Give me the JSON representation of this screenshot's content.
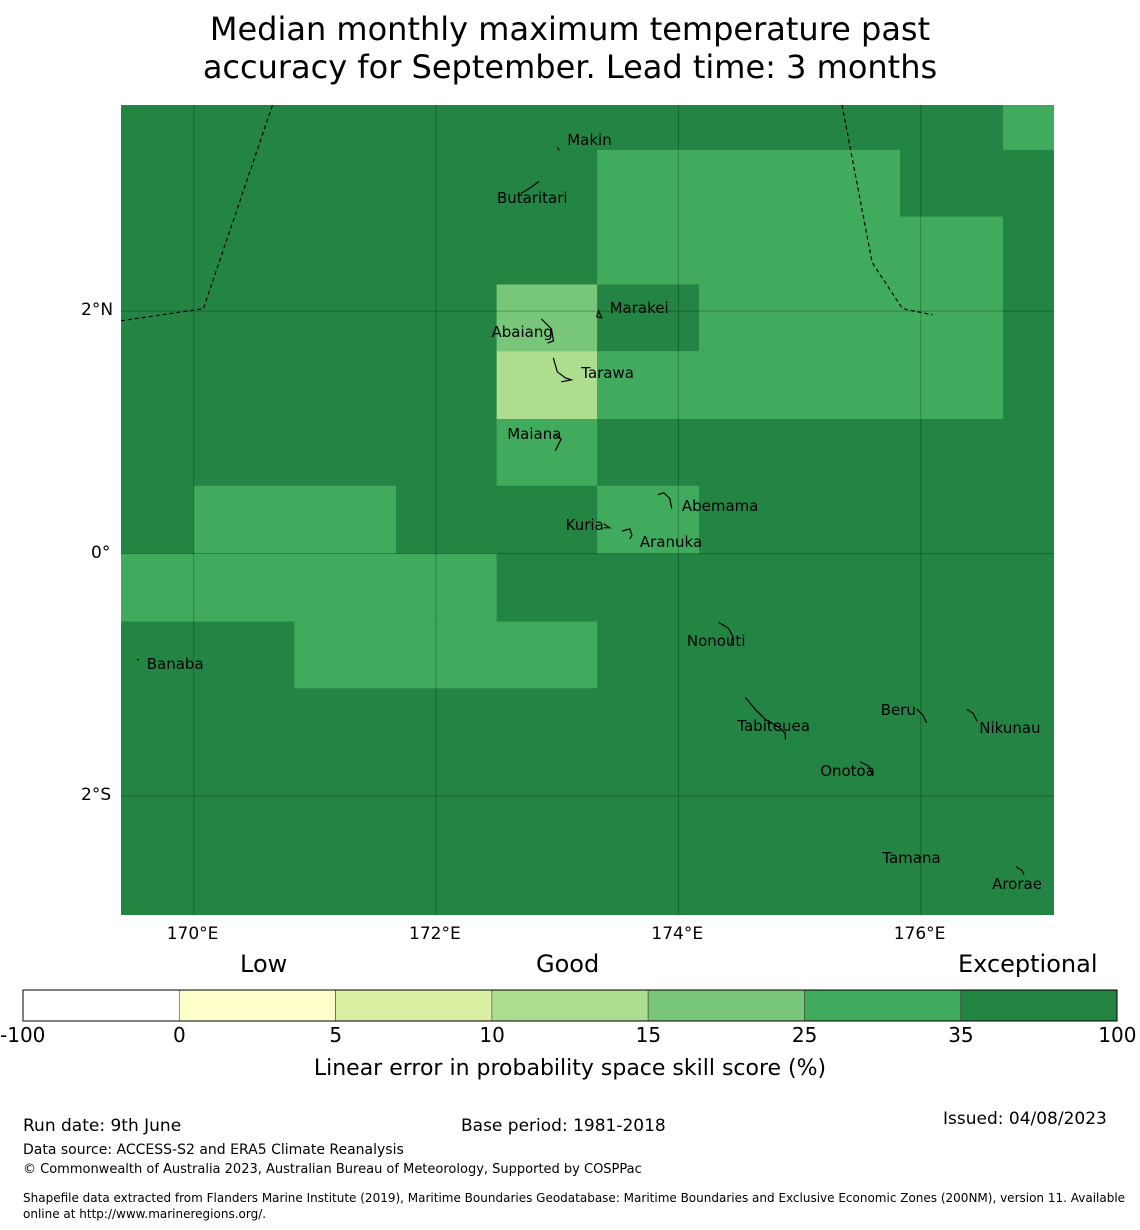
{
  "title_line1": "Median monthly maximum temperature past",
  "title_line2": "accuracy for September. Lead time: 3 months",
  "map": {
    "lon_range": [
      169.4,
      177.1
    ],
    "lat_range": [
      -2.98,
      3.7
    ],
    "lon_ticks": [
      {
        "value": 170,
        "label": "170°E"
      },
      {
        "value": 172,
        "label": "172°E"
      },
      {
        "value": 174,
        "label": "174°E"
      },
      {
        "value": 176,
        "label": "176°E"
      }
    ],
    "lat_ticks": [
      {
        "value": 2,
        "label": "2°N"
      },
      {
        "value": 0,
        "label": "0°"
      },
      {
        "value": -2,
        "label": "2°S"
      }
    ],
    "places": [
      {
        "name": "Makin",
        "lon": 173.0,
        "lat": 3.35
      },
      {
        "name": "Butaritari",
        "lon": 172.8,
        "lat": 3.07
      },
      {
        "name": "Marakei",
        "lon": 173.35,
        "lat": 1.97
      },
      {
        "name": "Abaiang",
        "lon": 172.92,
        "lat": 1.82
      },
      {
        "name": "Tarawa",
        "lon": 173.05,
        "lat": 1.45
      },
      {
        "name": "Maiana",
        "lon": 173.0,
        "lat": 0.93
      },
      {
        "name": "Abemama",
        "lon": 173.88,
        "lat": 0.42
      },
      {
        "name": "Kuria",
        "lon": 173.4,
        "lat": 0.23
      },
      {
        "name": "Aranuka",
        "lon": 173.6,
        "lat": 0.17
      },
      {
        "name": "Nonouti",
        "lon": 174.4,
        "lat": -0.65
      },
      {
        "name": "Banaba",
        "lon": 169.53,
        "lat": -0.87
      },
      {
        "name": "Beru",
        "lon": 176.0,
        "lat": -1.33
      },
      {
        "name": "Nikunau",
        "lon": 176.45,
        "lat": -1.35
      },
      {
        "name": "Tabiteuea",
        "lon": 174.8,
        "lat": -1.4
      },
      {
        "name": "Onotoa",
        "lon": 175.55,
        "lat": -1.8
      },
      {
        "name": "Tamana",
        "lon": 175.98,
        "lat": -2.5
      },
      {
        "name": "Arorae",
        "lon": 176.82,
        "lat": -2.63
      }
    ],
    "cells": [
      {
        "lon0": 176.68,
        "lon1": 177.1,
        "lat0": 3.33,
        "lat1": 3.7,
        "cat": 25
      },
      {
        "lon0": 173.33,
        "lon1": 175.83,
        "lat0": 2.78,
        "lat1": 3.33,
        "cat": 25
      },
      {
        "lon0": 173.33,
        "lon1": 176.68,
        "lat0": 1.67,
        "lat1": 2.78,
        "cat": 25
      },
      {
        "lon0": 172.5,
        "lon1": 173.33,
        "lat0": 1.67,
        "lat1": 2.22,
        "cat": 15
      },
      {
        "lon0": 173.33,
        "lon1": 174.17,
        "lat0": 1.67,
        "lat1": 2.22,
        "cat": 35
      },
      {
        "lon0": 172.5,
        "lon1": 173.33,
        "lat0": 1.11,
        "lat1": 1.67,
        "cat": 10
      },
      {
        "lon0": 173.33,
        "lon1": 176.68,
        "lat0": 1.11,
        "lat1": 1.67,
        "cat": 25
      },
      {
        "lon0": 172.5,
        "lon1": 173.33,
        "lat0": 0.56,
        "lat1": 1.11,
        "cat": 25
      },
      {
        "lon0": 170.0,
        "lon1": 171.67,
        "lat0": 0.0,
        "lat1": 0.56,
        "cat": 25
      },
      {
        "lon0": 173.33,
        "lon1": 174.17,
        "lat0": 0.0,
        "lat1": 0.56,
        "cat": 25
      },
      {
        "lon0": 169.4,
        "lon1": 172.5,
        "lat0": -0.56,
        "lat1": 0.0,
        "cat": 25
      },
      {
        "lon0": 170.83,
        "lon1": 173.33,
        "lat0": -1.11,
        "lat1": -0.56,
        "cat": 25
      }
    ],
    "background_cat": 35,
    "boundaries": [
      [
        [
          169.4,
          1.92
        ],
        [
          170.08,
          2.02
        ],
        [
          170.65,
          3.7
        ]
      ],
      [
        [
          175.35,
          3.7
        ],
        [
          175.6,
          2.4
        ],
        [
          175.85,
          2.02
        ],
        [
          176.1,
          1.97
        ]
      ]
    ]
  },
  "legend": {
    "words": [
      "Low",
      "Good",
      "Exceptional"
    ],
    "boundaries": [
      "-100",
      "0",
      "5",
      "10",
      "15",
      "25",
      "35",
      "100"
    ],
    "colors": [
      "#ffffff",
      "#ffffcc",
      "#d9f0a3",
      "#addd8e",
      "#78c679",
      "#41ab5d",
      "#238443"
    ],
    "label": "Linear error in probability space skill score (%)"
  },
  "footer": {
    "run_date": "Run date: 9th June",
    "base_period": "Base period: 1981-2018",
    "issued": "Issued: 04/08/2023",
    "data_source": "Data source: ACCESS-S2 and ERA5 Climate Reanalysis",
    "copyright": "© Commonwealth of Australia 2023, Australian Bureau of Meteorology, Supported by COSPPac",
    "shapefile_line1": "Shapefile data extracted from Flanders Marine Institute (2019), Maritime Boundaries Geodatabase: Maritime Boundaries and Exclusive Economic Zones (200NM), version 11. Available",
    "shapefile_line2": "online at http://www.marineregions.org/."
  }
}
